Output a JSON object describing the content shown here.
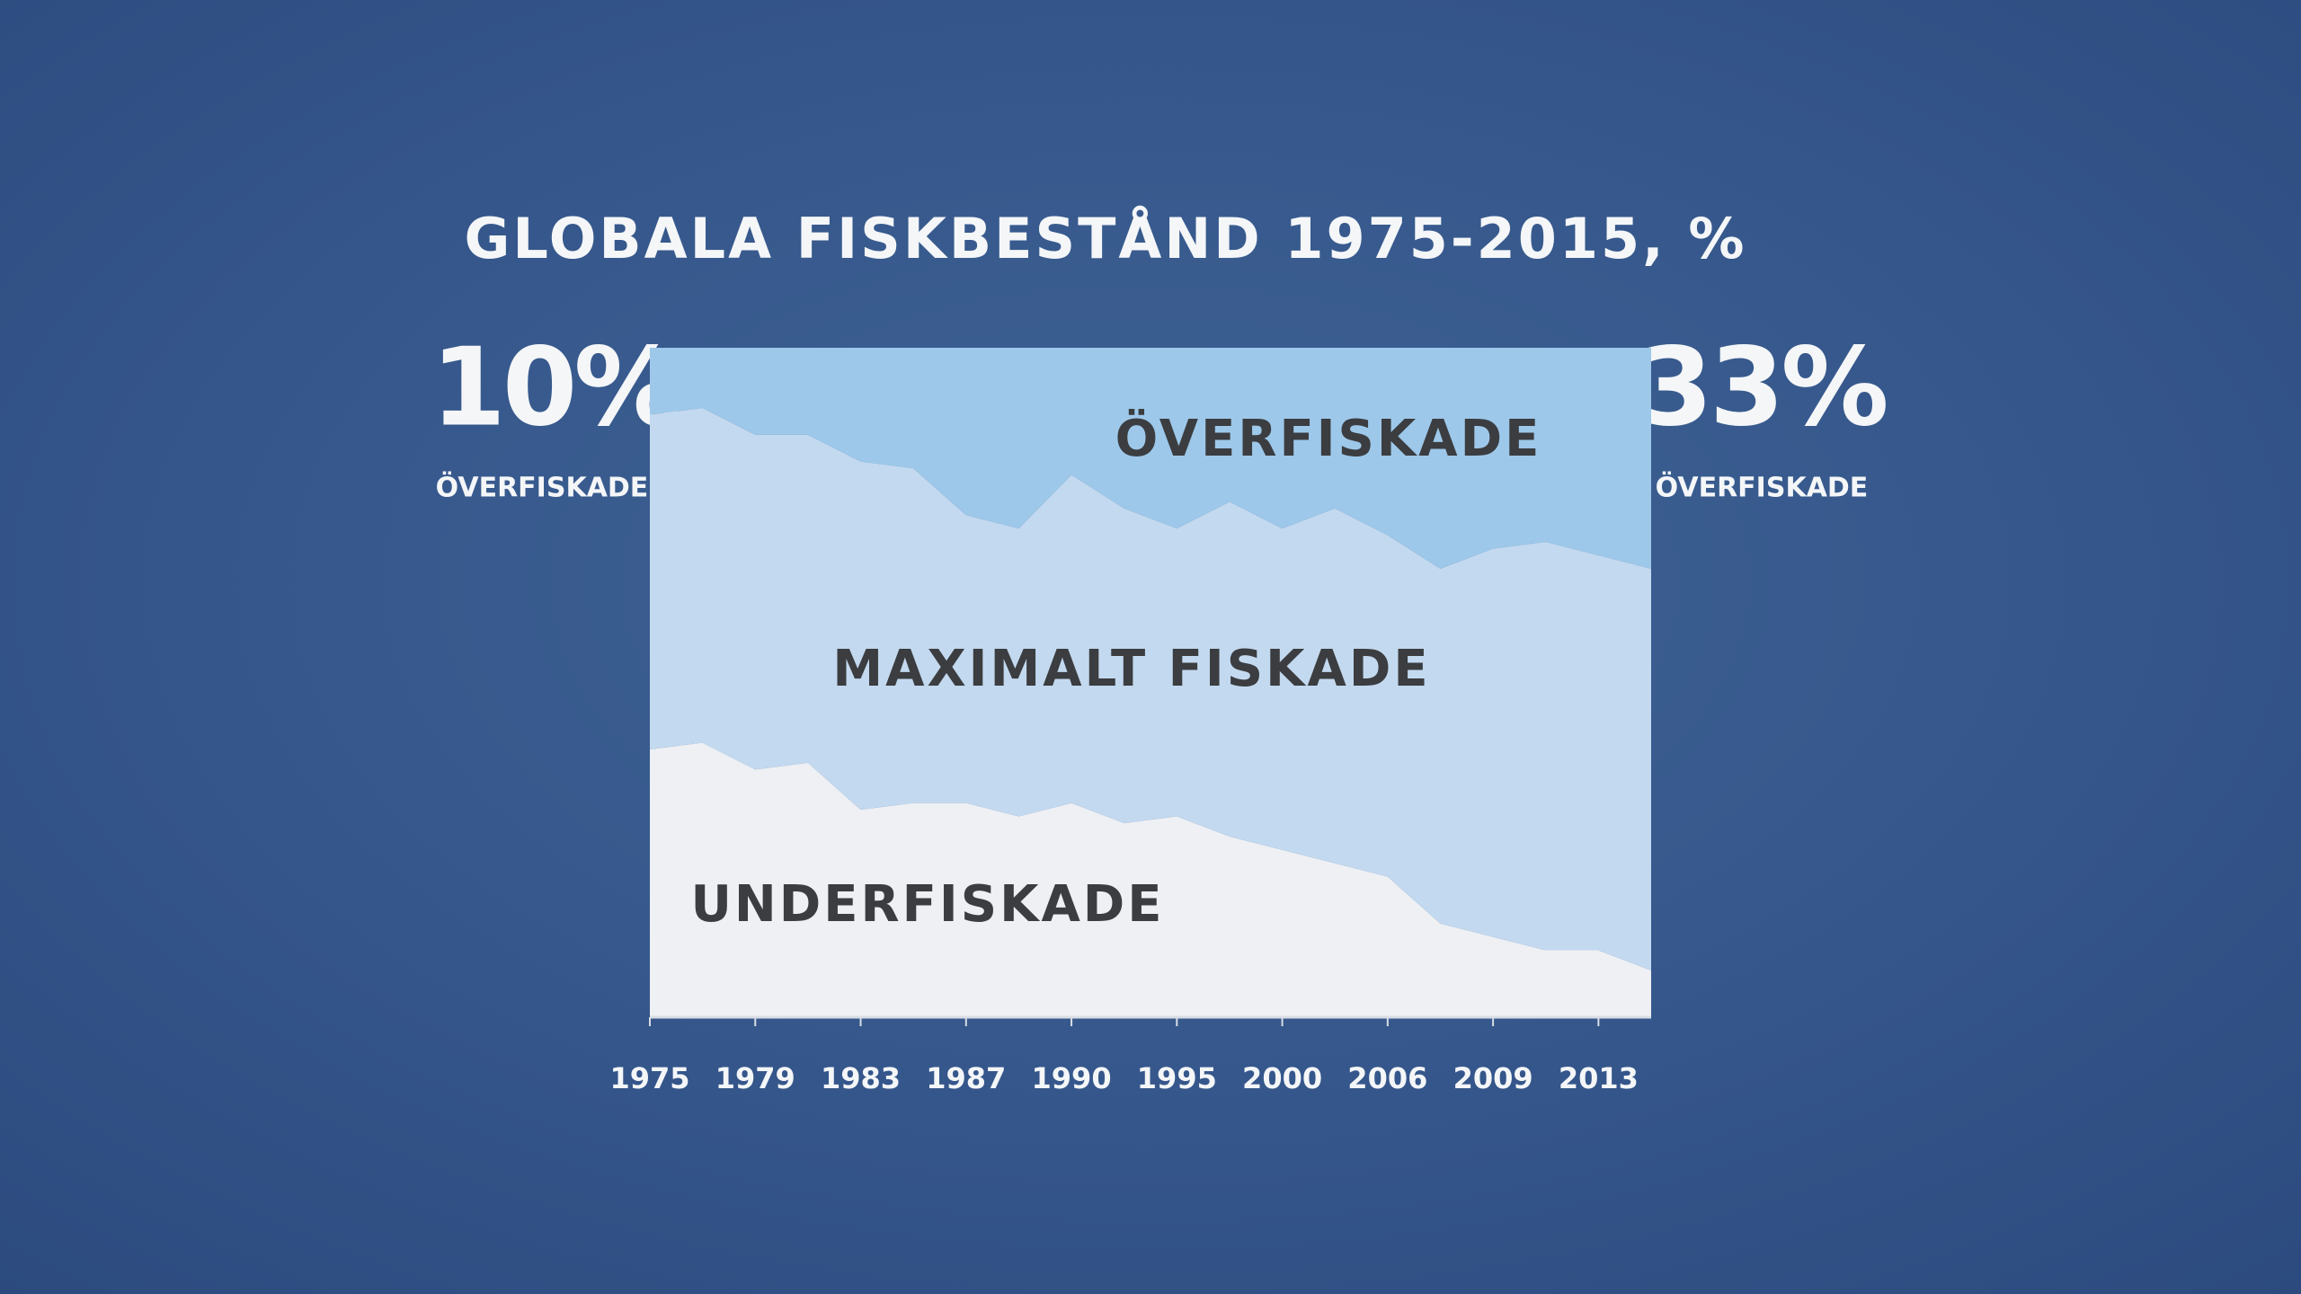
{
  "chart_data": {
    "type": "stacked_area",
    "title": "GLOBALA FISKBESTÅND 1975-2015, %",
    "categories": [
      "1975",
      null,
      "1979",
      null,
      "1983",
      null,
      "1987",
      null,
      "1990",
      null,
      "1995",
      null,
      "2000",
      null,
      "2006",
      null,
      "2009",
      null,
      "2013",
      null
    ],
    "series": [
      {
        "name": "UNDERFISKADE",
        "color": "#eef0f4",
        "values": [
          40,
          41,
          37,
          38,
          31,
          32,
          32,
          30,
          32,
          29,
          30,
          27,
          25,
          23,
          21,
          14,
          12,
          10,
          10,
          7
        ]
      },
      {
        "name": "MAXIMALT FISKADE",
        "color": "#c3d9ef",
        "values": [
          50,
          50,
          50,
          49,
          52,
          50,
          43,
          43,
          49,
          47,
          43,
          50,
          48,
          53,
          51,
          53,
          58,
          61,
          59,
          60
        ]
      },
      {
        "name": "ÖVERFISKADE",
        "color": "#9dc8ea",
        "values": [
          10,
          9,
          13,
          13,
          17,
          18,
          25,
          27,
          19,
          24,
          27,
          23,
          27,
          24,
          28,
          33,
          30,
          29,
          31,
          33
        ]
      }
    ],
    "ylim": [
      0,
      100
    ],
    "left_callout": {
      "text": "10%",
      "caption": "ÖVERFISKADE"
    },
    "right_callout": {
      "text": "33%",
      "caption": "ÖVERFISKADE"
    }
  }
}
